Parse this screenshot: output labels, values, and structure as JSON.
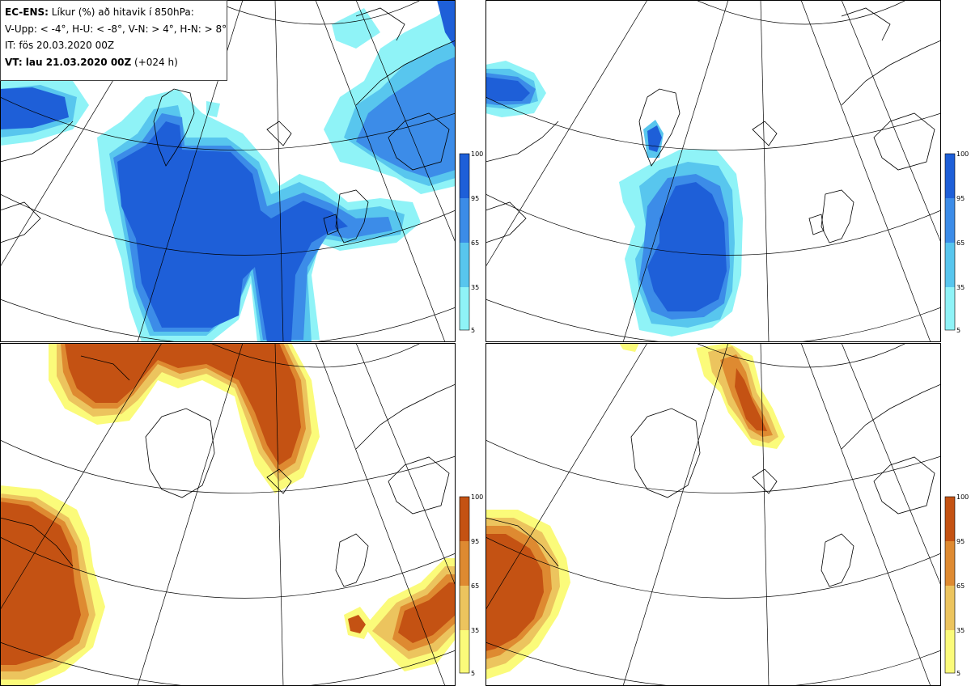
{
  "header": {
    "line1_bold": "EC-ENS:",
    "line1_rest": " Líkur (%) að hitavik í 850hPa:",
    "line2": "V-Upp: < -4°, H-U: < -8°, V-N: > 4°, H-N: > 8°",
    "line3": "IT: fös 20.03.2020 00Z",
    "line4_bold": "VT: lau 21.03.2020 00Z",
    "line4_rest": " (+024 h)"
  },
  "colorbars": {
    "cold": {
      "ticks": [
        "100",
        "95",
        "65",
        "35",
        "5"
      ],
      "colors": [
        "#1e5fd8",
        "#3c8ce8",
        "#58c6ee",
        "#8ff3f7"
      ]
    },
    "warm": {
      "ticks": [
        "100",
        "95",
        "65",
        "35",
        "5"
      ],
      "colors": [
        "#c45213",
        "#de8a31",
        "#ecc45e",
        "#fbfb7a"
      ]
    }
  },
  "panels": [
    {
      "id": "V-Upp",
      "scheme": "cold"
    },
    {
      "id": "H-U",
      "scheme": "cold"
    },
    {
      "id": "V-N",
      "scheme": "warm"
    },
    {
      "id": "H-N",
      "scheme": "warm"
    }
  ]
}
